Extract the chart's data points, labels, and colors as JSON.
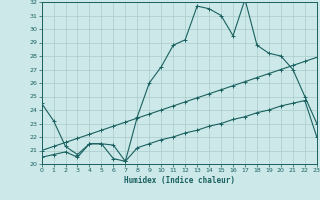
{
  "xlabel": "Humidex (Indice chaleur)",
  "background_color": "#cce8e8",
  "grid_color": "#aacccc",
  "line_color": "#1a6060",
  "xlim": [
    0,
    23
  ],
  "ylim": [
    20,
    32
  ],
  "xticks": [
    0,
    1,
    2,
    3,
    4,
    5,
    6,
    7,
    8,
    9,
    10,
    11,
    12,
    13,
    14,
    15,
    16,
    17,
    18,
    19,
    20,
    21,
    22,
    23
  ],
  "yticks": [
    20,
    21,
    22,
    23,
    24,
    25,
    26,
    27,
    28,
    29,
    30,
    31,
    32
  ],
  "line1_x": [
    0,
    1,
    2,
    3,
    4,
    5,
    6,
    7,
    8,
    9,
    10,
    11,
    12,
    13,
    14,
    15,
    16,
    17,
    18,
    19,
    20,
    21,
    22,
    23
  ],
  "line1_y": [
    24.5,
    23.2,
    21.3,
    20.7,
    21.5,
    21.5,
    20.4,
    20.2,
    23.5,
    26.0,
    27.2,
    28.8,
    29.2,
    31.7,
    31.5,
    31.0,
    29.5,
    32.2,
    28.8,
    28.2,
    28.0,
    27.0,
    25.0,
    23.0
  ],
  "line2_x": [
    0,
    1,
    2,
    3,
    4,
    5,
    6,
    7,
    8,
    9,
    10,
    11,
    12,
    13,
    14,
    15,
    16,
    17,
    18,
    19,
    20,
    21,
    22,
    23
  ],
  "line2_y": [
    21.0,
    21.3,
    21.6,
    21.9,
    22.2,
    22.5,
    22.8,
    23.1,
    23.4,
    23.7,
    24.0,
    24.3,
    24.6,
    24.9,
    25.2,
    25.5,
    25.8,
    26.1,
    26.4,
    26.7,
    27.0,
    27.3,
    27.6,
    27.9
  ],
  "line3_x": [
    0,
    1,
    2,
    3,
    4,
    5,
    6,
    7,
    8,
    9,
    10,
    11,
    12,
    13,
    14,
    15,
    16,
    17,
    18,
    19,
    20,
    21,
    22,
    23
  ],
  "line3_y": [
    20.5,
    20.7,
    20.9,
    20.5,
    21.5,
    21.5,
    21.4,
    20.2,
    21.2,
    21.5,
    21.8,
    22.0,
    22.3,
    22.5,
    22.8,
    23.0,
    23.3,
    23.5,
    23.8,
    24.0,
    24.3,
    24.5,
    24.7,
    22.0
  ]
}
